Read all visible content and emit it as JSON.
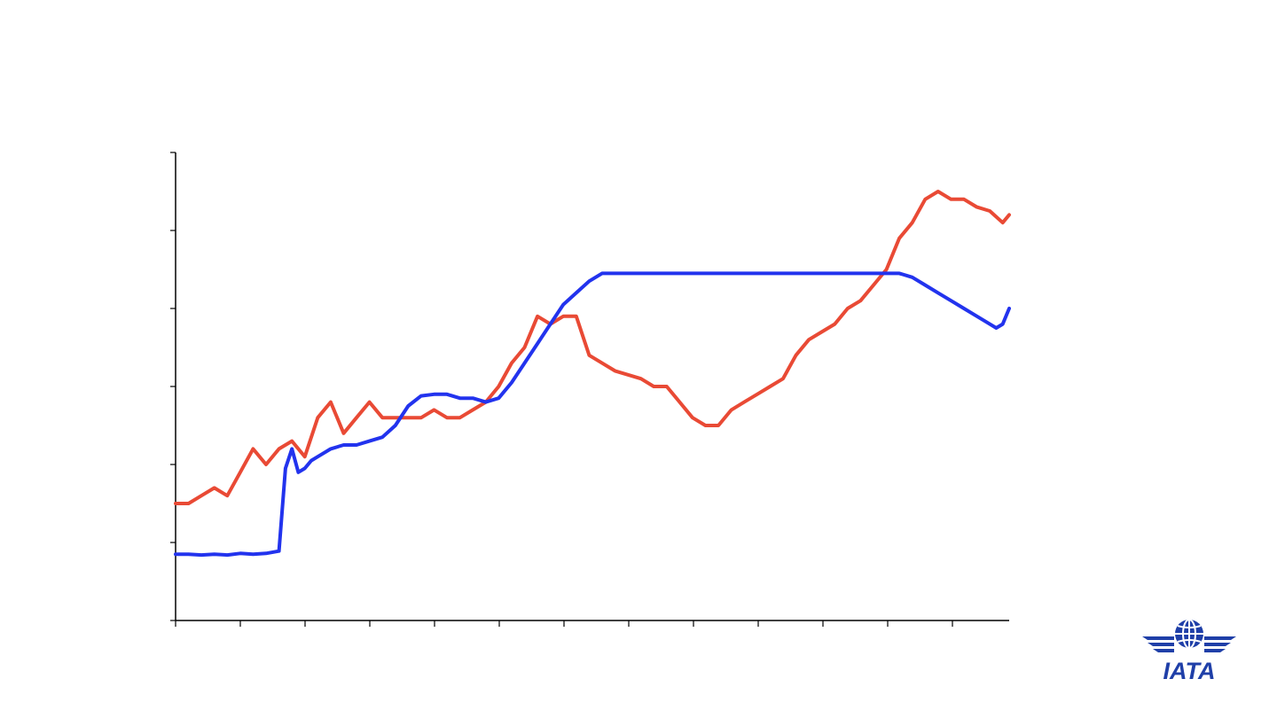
{
  "chart_data": {
    "type": "line",
    "title": "",
    "xlabel": "",
    "ylabel": "",
    "x_ticks": 13,
    "y_ticks": 6,
    "grid": false,
    "legend": "none",
    "xlim": [
      0,
      129
    ],
    "ylim": [
      0,
      6
    ],
    "series": [
      {
        "color": "#e94a35",
        "x": [
          0,
          2,
          4,
          6,
          8,
          10,
          12,
          14,
          16,
          18,
          20,
          22,
          24,
          26,
          28,
          30,
          32,
          34,
          36,
          38,
          40,
          42,
          44,
          46,
          48,
          50,
          52,
          54,
          56,
          58,
          60,
          62,
          64,
          66,
          68,
          70,
          72,
          74,
          76,
          78,
          80,
          82,
          84,
          86,
          88,
          90,
          92,
          94,
          96,
          98,
          100,
          102,
          104,
          106,
          108,
          110,
          112,
          114,
          116,
          118,
          120,
          122,
          124,
          126,
          128,
          129
        ],
        "values": [
          1.5,
          1.5,
          1.6,
          1.7,
          1.6,
          1.9,
          2.2,
          2.0,
          2.2,
          2.3,
          2.1,
          2.6,
          2.8,
          2.4,
          2.6,
          2.8,
          2.6,
          2.6,
          2.6,
          2.6,
          2.7,
          2.6,
          2.6,
          2.7,
          2.8,
          3.0,
          3.3,
          3.5,
          3.9,
          3.8,
          3.9,
          3.9,
          3.4,
          3.3,
          3.2,
          3.15,
          3.1,
          3.0,
          3.0,
          2.8,
          2.6,
          2.5,
          2.5,
          2.7,
          2.8,
          2.9,
          3.0,
          3.1,
          3.4,
          3.6,
          3.7,
          3.8,
          4.0,
          4.1,
          4.3,
          4.5,
          4.9,
          5.1,
          5.4,
          5.5,
          5.4,
          5.4,
          5.3,
          5.25,
          5.1,
          5.2
        ]
      },
      {
        "color": "#2233ee",
        "x": [
          0,
          2,
          4,
          6,
          8,
          10,
          12,
          14,
          16,
          17,
          18,
          19,
          20,
          21,
          22,
          24,
          26,
          28,
          30,
          32,
          34,
          36,
          38,
          40,
          42,
          44,
          46,
          48,
          50,
          52,
          54,
          56,
          58,
          60,
          62,
          64,
          66,
          68,
          70,
          72,
          74,
          76,
          78,
          80,
          82,
          84,
          86,
          88,
          90,
          92,
          94,
          96,
          98,
          100,
          102,
          104,
          106,
          108,
          110,
          112,
          114,
          116,
          118,
          120,
          122,
          124,
          126,
          127,
          128,
          129
        ],
        "values": [
          0.85,
          0.85,
          0.84,
          0.85,
          0.84,
          0.86,
          0.85,
          0.86,
          0.89,
          1.95,
          2.2,
          1.9,
          1.95,
          2.05,
          2.1,
          2.2,
          2.25,
          2.25,
          2.3,
          2.35,
          2.5,
          2.75,
          2.88,
          2.9,
          2.9,
          2.85,
          2.85,
          2.8,
          2.85,
          3.05,
          3.3,
          3.55,
          3.8,
          4.05,
          4.2,
          4.35,
          4.45,
          4.45,
          4.45,
          4.45,
          4.45,
          4.45,
          4.45,
          4.45,
          4.45,
          4.45,
          4.45,
          4.45,
          4.45,
          4.45,
          4.45,
          4.45,
          4.45,
          4.45,
          4.45,
          4.45,
          4.45,
          4.45,
          4.45,
          4.45,
          4.4,
          4.3,
          4.2,
          4.1,
          4.0,
          3.9,
          3.8,
          3.75,
          3.8,
          4.0
        ]
      }
    ]
  },
  "logo": {
    "text": "IATA",
    "color": "#1f3fa8"
  }
}
